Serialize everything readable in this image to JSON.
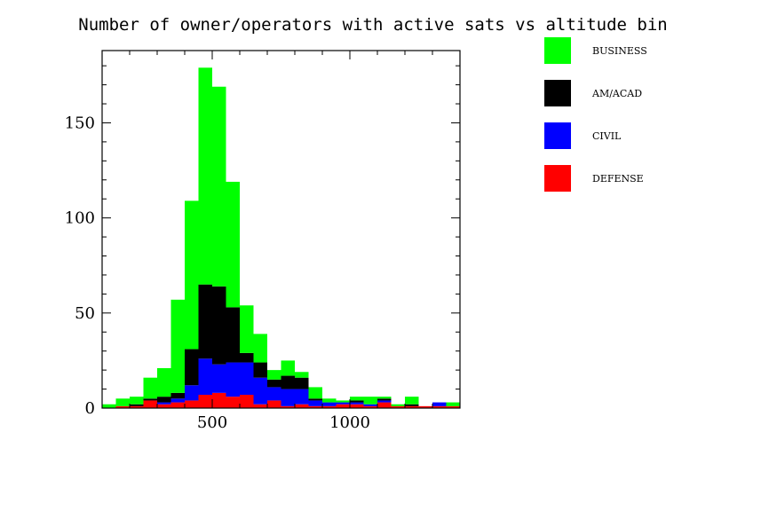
{
  "chart_data": {
    "type": "bar",
    "stacked": true,
    "histogram": true,
    "title": "Number of owner/operators with active sats vs altitude bin",
    "xlabel": "",
    "ylabel": "",
    "xlim": [
      100,
      1400
    ],
    "ylim": [
      0,
      188
    ],
    "x_ticks": [
      500,
      1000
    ],
    "y_ticks": [
      0,
      50,
      100,
      150
    ],
    "grid": false,
    "legend_position": "right",
    "bin_width": 50,
    "bin_starts": [
      100,
      150,
      200,
      250,
      300,
      350,
      400,
      450,
      500,
      550,
      600,
      650,
      700,
      750,
      800,
      850,
      900,
      950,
      1000,
      1050,
      1100,
      1150,
      1200,
      1250,
      1300,
      1350
    ],
    "series": [
      {
        "name": "DEFENSE",
        "color": "#ff0000",
        "values": [
          0,
          1,
          1,
          4,
          2,
          3,
          4,
          7,
          8,
          6,
          7,
          2,
          4,
          1,
          2,
          1,
          1,
          2,
          2,
          1,
          3,
          1,
          1,
          1,
          1,
          1
        ]
      },
      {
        "name": "CIVIL",
        "color": "#0000ff",
        "values": [
          0,
          0,
          0,
          0,
          1,
          2,
          8,
          19,
          15,
          18,
          17,
          14,
          7,
          9,
          8,
          3,
          2,
          1,
          1,
          1,
          1,
          0,
          0,
          0,
          2,
          0
        ]
      },
      {
        "name": "AM/ACAD",
        "color": "#000000",
        "values": [
          0,
          0,
          1,
          1,
          3,
          3,
          19,
          39,
          41,
          29,
          5,
          8,
          4,
          7,
          6,
          1,
          0,
          0,
          1,
          0,
          1,
          0,
          1,
          0,
          0,
          0
        ]
      },
      {
        "name": "BUSINESS",
        "color": "#00ff00",
        "values": [
          2,
          4,
          4,
          11,
          15,
          49,
          78,
          114,
          105,
          66,
          25,
          15,
          5,
          8,
          3,
          6,
          2,
          1,
          2,
          4,
          1,
          1,
          4,
          0,
          0,
          2
        ]
      }
    ]
  }
}
